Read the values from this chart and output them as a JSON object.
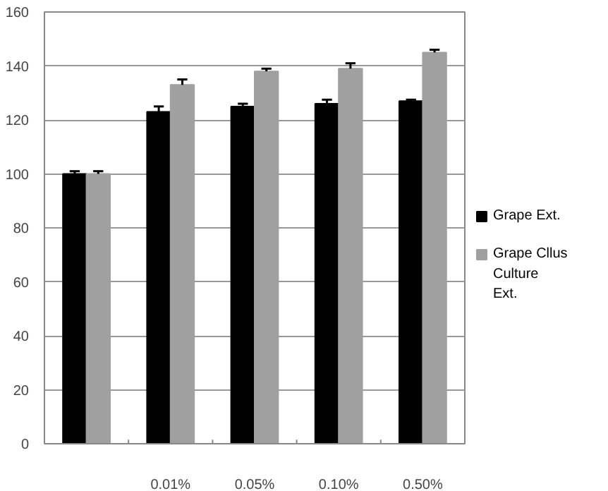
{
  "chart_data": {
    "type": "bar",
    "categories": [
      null,
      "0.01%",
      "0.05%",
      "0.10%",
      "0.50%"
    ],
    "series": [
      {
        "name": "Grape Ext.",
        "color": "#000000",
        "values": [
          100,
          123,
          125,
          126,
          127
        ],
        "errors": [
          1,
          2,
          1,
          1.5,
          0.5
        ]
      },
      {
        "name": "Grape Cllus Culture Ext.",
        "color": "#a0a0a0",
        "values": [
          100,
          133,
          138,
          139,
          145
        ],
        "errors": [
          1,
          2,
          1,
          2,
          1
        ]
      }
    ],
    "ylim": [
      0,
      160
    ],
    "yticks": [
      0,
      20,
      40,
      60,
      80,
      100,
      120,
      140,
      160
    ],
    "grid": "y",
    "legend": "right"
  }
}
